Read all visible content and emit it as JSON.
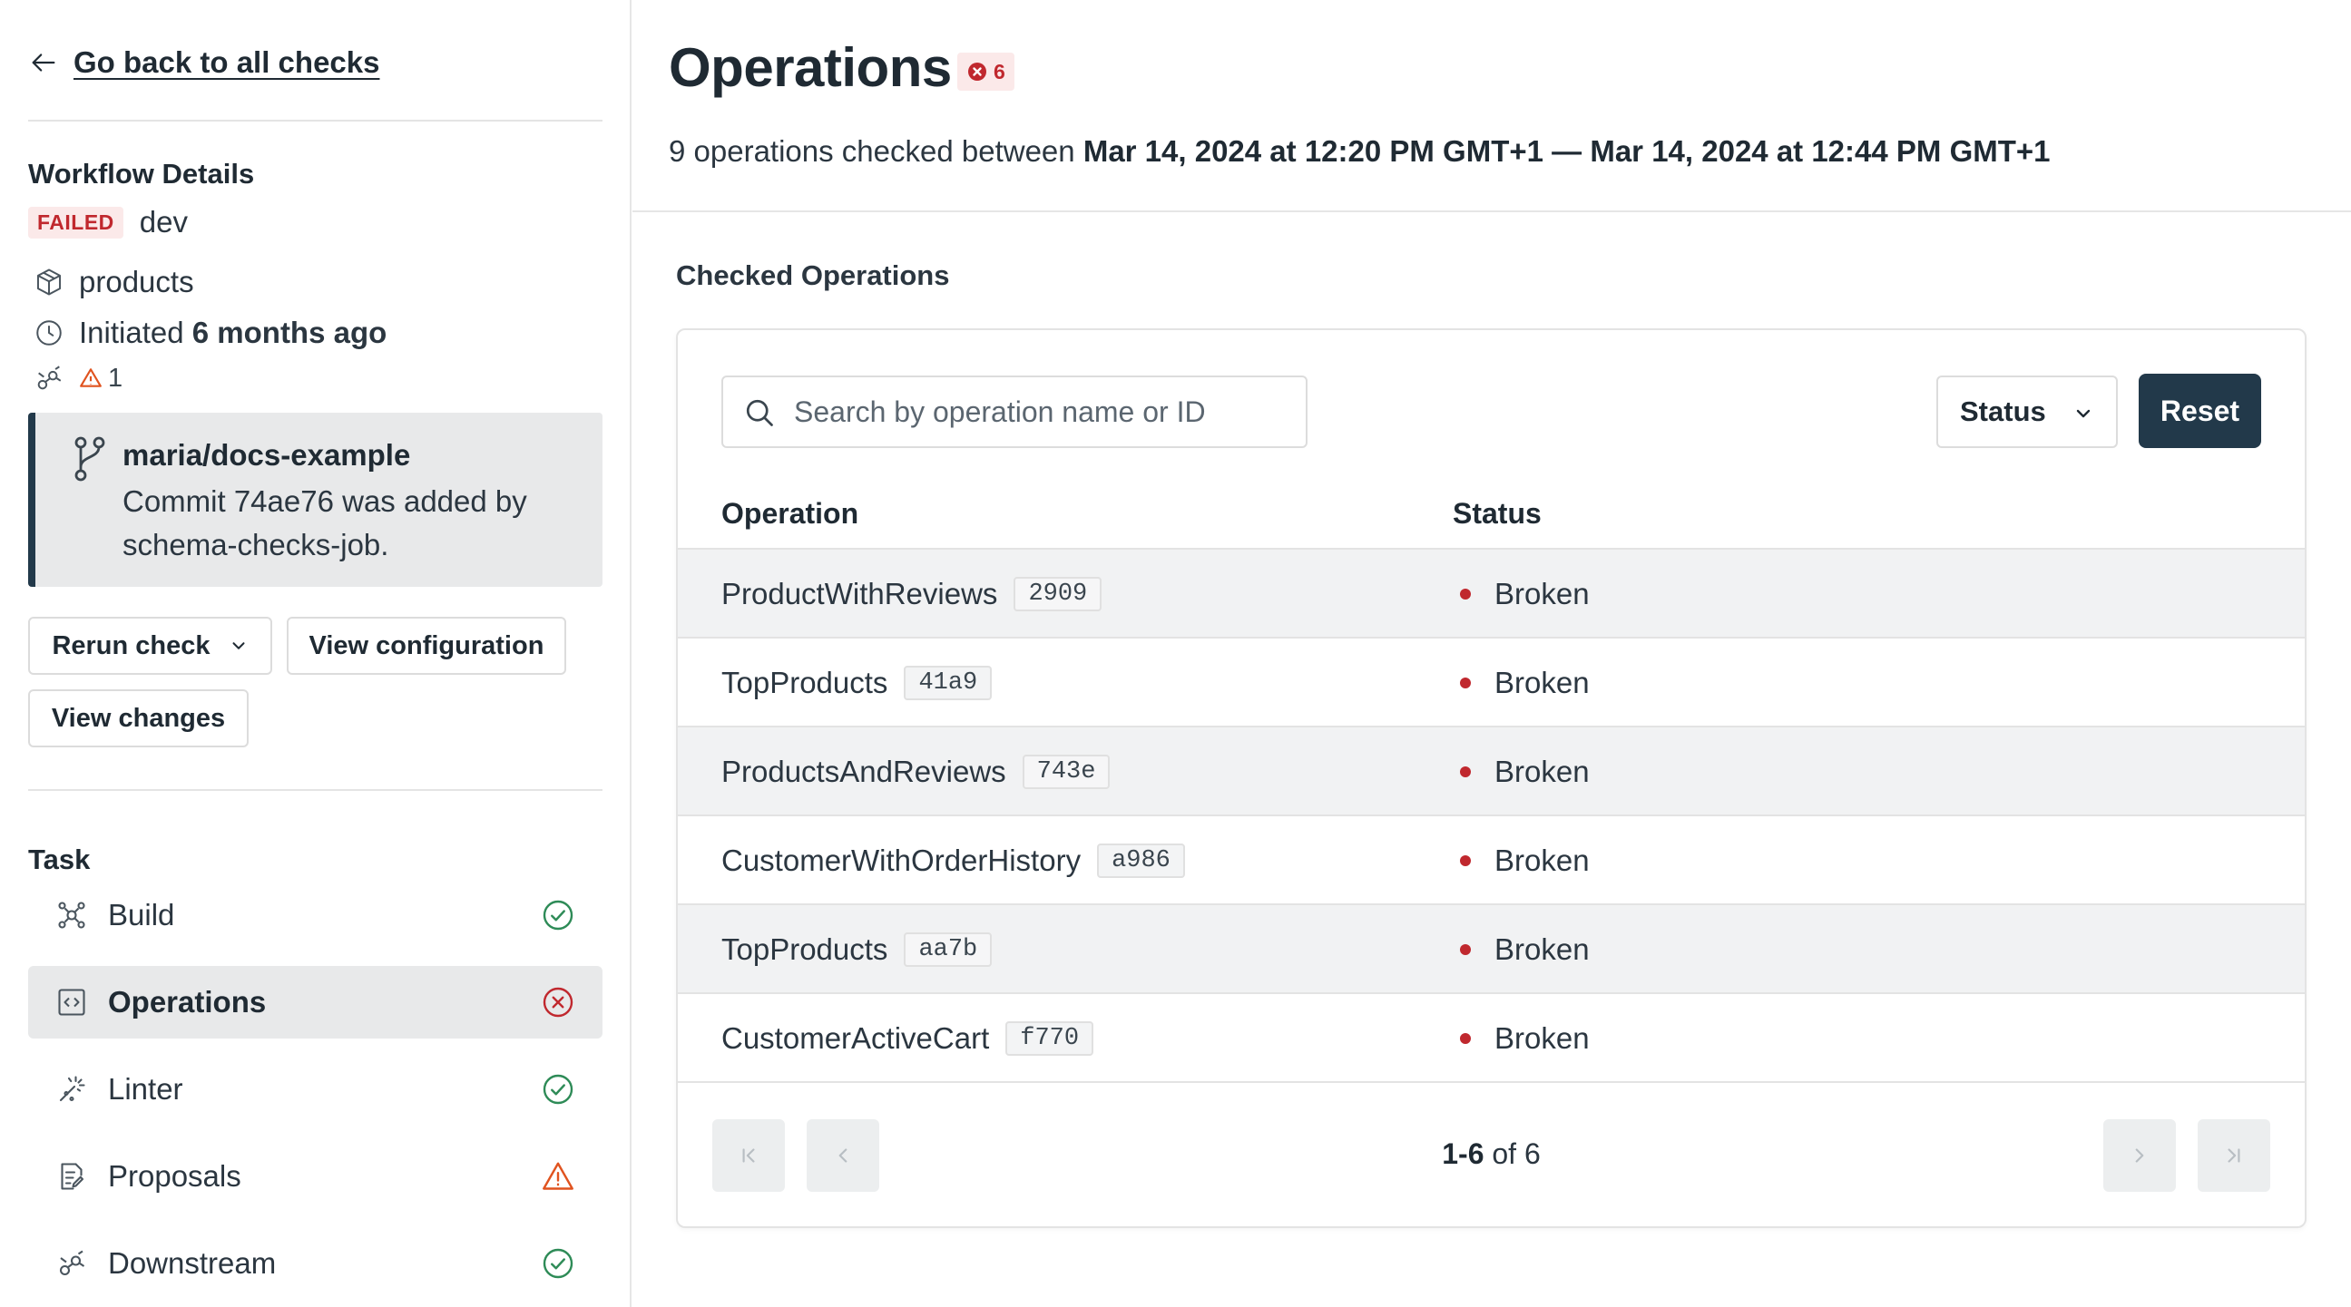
{
  "sidebar": {
    "back_label": "Go back to all checks",
    "workflow_title": "Workflow Details",
    "status_badge": "FAILED",
    "environment": "dev",
    "product": "products",
    "initiated_prefix": "Initiated",
    "initiated_time": "6 months ago",
    "warning_count": "1",
    "commit": {
      "repo": "maria/docs-example",
      "message": "Commit 74ae76 was added by schema-checks-job."
    },
    "buttons": {
      "rerun": "Rerun check",
      "view_config": "View configuration",
      "view_changes": "View changes"
    },
    "task_title": "Task",
    "tasks": [
      {
        "label": "Build",
        "icon": "build-icon",
        "status": "success"
      },
      {
        "label": "Operations",
        "icon": "operations-icon",
        "status": "failed"
      },
      {
        "label": "Linter",
        "icon": "linter-icon",
        "status": "success"
      },
      {
        "label": "Proposals",
        "icon": "proposals-icon",
        "status": "warning"
      },
      {
        "label": "Downstream",
        "icon": "downstream-icon",
        "status": "success"
      }
    ]
  },
  "main": {
    "title": "Operations",
    "error_count": "6",
    "subtitle_prefix": "9 operations checked between",
    "range_start": "Mar 14, 2024 at 12:20 PM GMT+1",
    "range_sep": " — ",
    "range_end": "Mar 14, 2024 at 12:44 PM GMT+1",
    "section_title": "Checked Operations",
    "search_placeholder": "Search by operation name or ID",
    "status_filter": "Status",
    "reset_label": "Reset",
    "columns": [
      "Operation",
      "Status"
    ],
    "rows": [
      {
        "name": "ProductWithReviews",
        "id": "2909",
        "status": "Broken"
      },
      {
        "name": "TopProducts",
        "id": "41a9",
        "status": "Broken"
      },
      {
        "name": "ProductsAndReviews",
        "id": "743e",
        "status": "Broken"
      },
      {
        "name": "CustomerWithOrderHistory",
        "id": "a986",
        "status": "Broken"
      },
      {
        "name": "TopProducts",
        "id": "aa7b",
        "status": "Broken"
      },
      {
        "name": "CustomerActiveCart",
        "id": "f770",
        "status": "Broken"
      }
    ],
    "pagination": {
      "range": "1-6",
      "of_label": "of",
      "total": "6"
    }
  },
  "colors": {
    "accent": "#22394a",
    "error": "#c0282e",
    "success": "#2e8b57",
    "warning": "#e0531f"
  }
}
